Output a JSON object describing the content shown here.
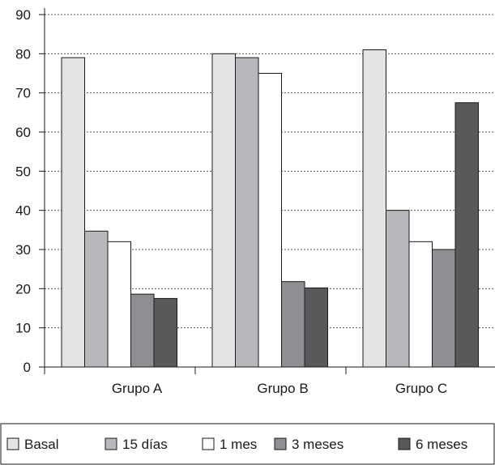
{
  "chart_data": {
    "type": "bar",
    "title": "",
    "xlabel": "",
    "ylabel": "",
    "categories": [
      "Grupo A",
      "Grupo B",
      "Grupo C"
    ],
    "ylim": [
      0,
      90
    ],
    "yticks": [
      0,
      10,
      20,
      30,
      40,
      50,
      60,
      70,
      80,
      90
    ],
    "grid": "horizontal-dotted",
    "legend_position": "bottom",
    "series": [
      {
        "name": "Basal",
        "color": "#e4e4e4",
        "values": [
          79,
          80,
          81
        ]
      },
      {
        "name": "15 días",
        "color": "#b7b8bb",
        "values": [
          34.7,
          79,
          40
        ]
      },
      {
        "name": "1 mes",
        "color": "#ffffff",
        "values": [
          32,
          75,
          32
        ]
      },
      {
        "name": "3 meses",
        "color": "#8e8f92",
        "values": [
          18.6,
          21.8,
          30
        ]
      },
      {
        "name": "6 meses",
        "color": "#58595b",
        "values": [
          17.5,
          20.2,
          67.5
        ]
      }
    ]
  }
}
